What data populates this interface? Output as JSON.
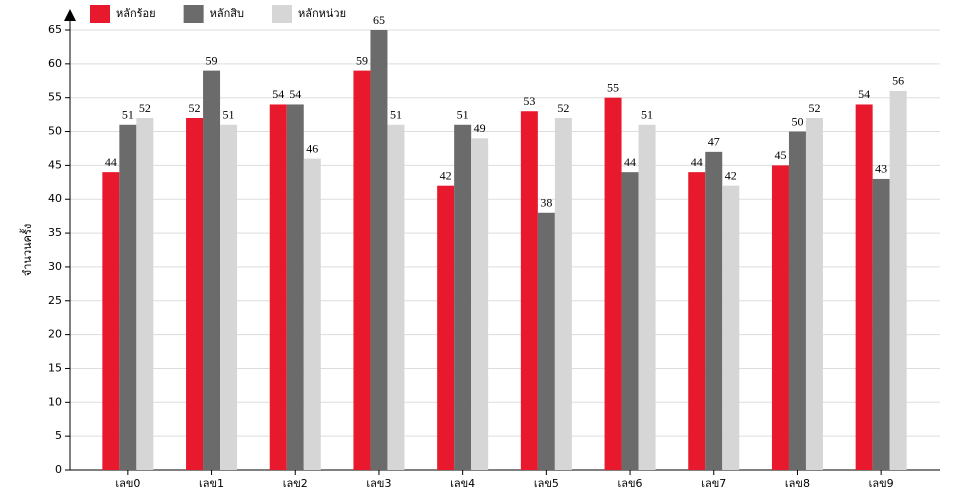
{
  "chart_data": {
    "type": "bar",
    "y_label": "จำนวนครั้ง",
    "categories": [
      "เลข0",
      "เลข1",
      "เลข2",
      "เลข3",
      "เลข4",
      "เลข5",
      "เลข6",
      "เลข7",
      "เลข8",
      "เลข9"
    ],
    "series": [
      {
        "name": "หลักร้อย",
        "color": "#e8192c",
        "values": [
          44,
          52,
          54,
          59,
          42,
          53,
          55,
          44,
          45,
          54
        ]
      },
      {
        "name": "หลักสิบ",
        "color": "#6b6b6b",
        "values": [
          51,
          59,
          54,
          65,
          51,
          38,
          44,
          47,
          50,
          43
        ]
      },
      {
        "name": "หลักหน่วย",
        "color": "#d6d6d6",
        "values": [
          52,
          51,
          46,
          51,
          49,
          52,
          51,
          42,
          52,
          56
        ]
      }
    ],
    "ylim": [
      0,
      65
    ],
    "yticks": [
      0,
      5,
      10,
      15,
      20,
      25,
      30,
      35,
      40,
      45,
      50,
      55,
      60,
      65
    ],
    "grid": true
  }
}
